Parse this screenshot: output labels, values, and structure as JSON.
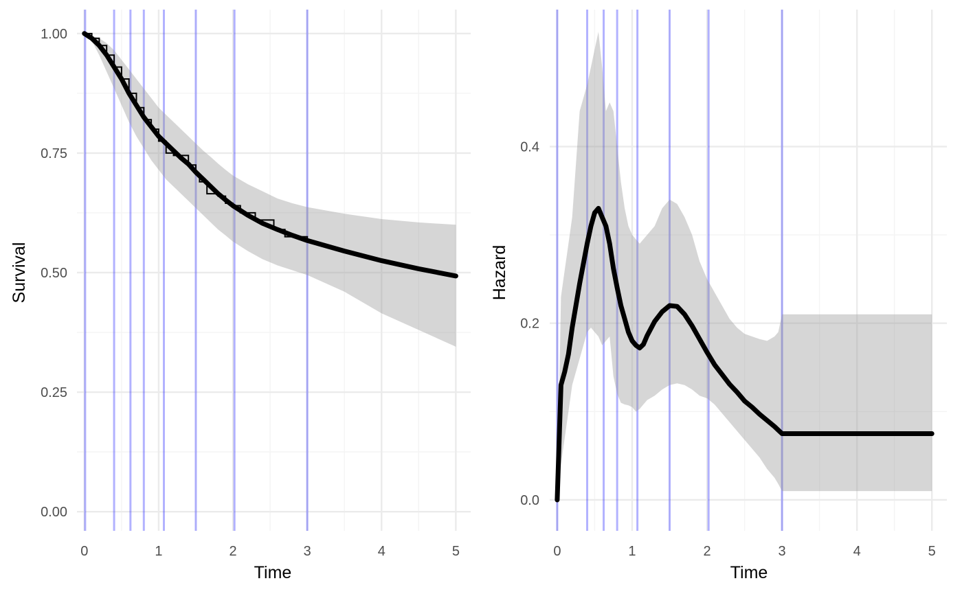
{
  "chart_data": [
    {
      "type": "line",
      "panel": "survival",
      "xlabel": "Time",
      "ylabel": "Survival",
      "xlim": [
        -0.1,
        5.2
      ],
      "ylim": [
        -0.04,
        1.05
      ],
      "xticks": [
        0,
        1,
        2,
        3,
        4,
        5
      ],
      "xtick_labels": [
        "0",
        "1",
        "2",
        "3",
        "4",
        "5"
      ],
      "yticks": [
        0,
        0.25,
        0.5,
        0.75,
        1
      ],
      "ytick_labels": [
        "0.00",
        "0.25",
        "0.50",
        "0.75",
        "1.00"
      ],
      "grid": true,
      "colors": {
        "knot": "#0000ff",
        "band": "#999999",
        "curve": "#000000"
      },
      "knots": [
        0.01,
        0.4,
        0.62,
        0.8,
        1.07,
        1.5,
        2.02,
        3.0
      ],
      "fit_x": [
        0,
        0.1,
        0.2,
        0.3,
        0.4,
        0.5,
        0.6,
        0.7,
        0.8,
        0.9,
        1.0,
        1.1,
        1.2,
        1.3,
        1.4,
        1.5,
        1.6,
        1.7,
        1.8,
        1.9,
        2.0,
        2.2,
        2.4,
        2.6,
        2.8,
        3.0,
        3.5,
        4.0,
        4.5,
        5.0
      ],
      "fit_y": [
        1.0,
        0.99,
        0.975,
        0.955,
        0.93,
        0.905,
        0.875,
        0.85,
        0.825,
        0.805,
        0.785,
        0.77,
        0.755,
        0.74,
        0.727,
        0.71,
        0.695,
        0.68,
        0.665,
        0.652,
        0.64,
        0.62,
        0.603,
        0.59,
        0.578,
        0.567,
        0.545,
        0.525,
        0.508,
        0.493
      ],
      "band_lower": [
        1.0,
        0.985,
        0.955,
        0.92,
        0.885,
        0.85,
        0.815,
        0.785,
        0.76,
        0.735,
        0.715,
        0.695,
        0.68,
        0.665,
        0.65,
        0.635,
        0.62,
        0.605,
        0.59,
        0.578,
        0.565,
        0.545,
        0.528,
        0.515,
        0.505,
        0.495,
        0.46,
        0.415,
        0.38,
        0.345
      ],
      "band_upper": [
        1.0,
        0.995,
        0.99,
        0.98,
        0.965,
        0.945,
        0.925,
        0.905,
        0.885,
        0.865,
        0.845,
        0.83,
        0.815,
        0.8,
        0.785,
        0.77,
        0.755,
        0.742,
        0.728,
        0.715,
        0.703,
        0.685,
        0.67,
        0.655,
        0.645,
        0.637,
        0.623,
        0.612,
        0.605,
        0.6
      ],
      "km_x": [
        0,
        0.1,
        0.2,
        0.3,
        0.4,
        0.5,
        0.6,
        0.7,
        0.8,
        0.9,
        1.0,
        1.1,
        1.2,
        1.4,
        1.5,
        1.55,
        1.65,
        1.8,
        1.9,
        2.0,
        2.1,
        2.3,
        2.55,
        2.7,
        3.0
      ],
      "km_y": [
        1.0,
        0.99,
        0.975,
        0.955,
        0.93,
        0.905,
        0.875,
        0.845,
        0.82,
        0.8,
        0.775,
        0.75,
        0.745,
        0.725,
        0.705,
        0.69,
        0.665,
        0.66,
        0.645,
        0.64,
        0.625,
        0.61,
        0.59,
        0.575,
        0.565
      ]
    },
    {
      "type": "line",
      "panel": "hazard",
      "xlabel": "Time",
      "ylabel": "Hazard",
      "xlim": [
        -0.1,
        5.2
      ],
      "ylim": [
        -0.035,
        0.555
      ],
      "xticks": [
        0,
        1,
        2,
        3,
        4,
        5
      ],
      "xtick_labels": [
        "0",
        "1",
        "2",
        "3",
        "4",
        "5"
      ],
      "yticks": [
        0,
        0.2,
        0.4
      ],
      "ytick_labels": [
        "0.0",
        "0.2",
        "0.4"
      ],
      "grid": true,
      "colors": {
        "knot": "#0000ff",
        "band": "#999999",
        "curve": "#000000"
      },
      "knots": [
        0.0,
        0.4,
        0.62,
        0.8,
        1.07,
        1.5,
        2.02,
        3.0
      ],
      "fit_x": [
        0,
        0.05,
        0.1,
        0.15,
        0.2,
        0.3,
        0.4,
        0.45,
        0.5,
        0.55,
        0.6,
        0.65,
        0.7,
        0.75,
        0.8,
        0.85,
        0.9,
        0.95,
        1.0,
        1.05,
        1.1,
        1.15,
        1.2,
        1.3,
        1.4,
        1.5,
        1.6,
        1.7,
        1.8,
        1.9,
        2.0,
        2.1,
        2.2,
        2.3,
        2.4,
        2.5,
        2.6,
        2.7,
        2.8,
        2.9,
        2.95,
        3.0,
        3.5,
        4.0,
        4.5,
        5.0
      ],
      "fit_y": [
        0.0,
        0.13,
        0.145,
        0.165,
        0.195,
        0.245,
        0.29,
        0.31,
        0.325,
        0.33,
        0.32,
        0.31,
        0.29,
        0.262,
        0.24,
        0.22,
        0.205,
        0.19,
        0.18,
        0.175,
        0.172,
        0.176,
        0.186,
        0.202,
        0.213,
        0.22,
        0.219,
        0.21,
        0.197,
        0.182,
        0.167,
        0.153,
        0.142,
        0.131,
        0.122,
        0.112,
        0.105,
        0.097,
        0.09,
        0.083,
        0.079,
        0.075,
        0.075,
        0.075,
        0.075,
        0.075
      ],
      "band_lower": [
        0.0,
        0.04,
        0.07,
        0.1,
        0.13,
        0.16,
        0.19,
        0.195,
        0.19,
        0.185,
        0.175,
        0.18,
        0.185,
        0.14,
        0.12,
        0.11,
        0.108,
        0.107,
        0.105,
        0.1,
        0.103,
        0.108,
        0.113,
        0.118,
        0.125,
        0.13,
        0.132,
        0.13,
        0.125,
        0.118,
        0.115,
        0.108,
        0.098,
        0.088,
        0.078,
        0.068,
        0.058,
        0.048,
        0.035,
        0.025,
        0.018,
        0.01,
        0.01,
        0.01,
        0.01,
        0.01
      ],
      "band_upper": [
        0.0,
        0.23,
        0.26,
        0.29,
        0.32,
        0.44,
        0.47,
        0.49,
        0.51,
        0.53,
        0.49,
        0.44,
        0.45,
        0.44,
        0.4,
        0.36,
        0.33,
        0.31,
        0.3,
        0.295,
        0.29,
        0.295,
        0.3,
        0.31,
        0.33,
        0.34,
        0.335,
        0.32,
        0.3,
        0.27,
        0.25,
        0.235,
        0.22,
        0.205,
        0.195,
        0.188,
        0.185,
        0.182,
        0.18,
        0.185,
        0.19,
        0.21,
        0.21,
        0.21,
        0.21,
        0.21
      ]
    }
  ]
}
